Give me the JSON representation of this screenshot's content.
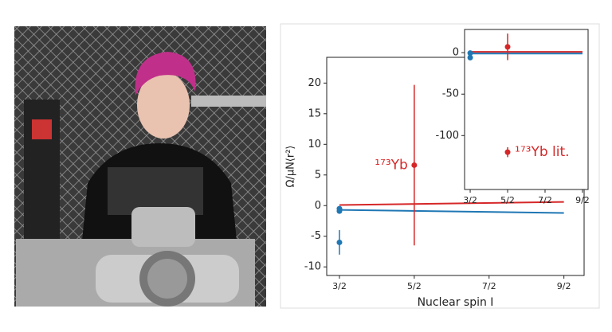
{
  "chart_data": [
    {
      "type": "line",
      "ylabel": "Ω/μN⟨r²⟩",
      "xlabel": "Nuclear spin I",
      "xlim": [
        1.33,
        4.77
      ],
      "ylim": [
        -11.4,
        24.2
      ],
      "xticks": [
        {
          "value": 1.5,
          "label": "3/2"
        },
        {
          "value": 2.5,
          "label": "5/2"
        },
        {
          "value": 3.5,
          "label": "7/2"
        },
        {
          "value": 4.5,
          "label": "9/2"
        }
      ],
      "yticks": [
        -10,
        -5,
        0,
        5,
        10,
        15,
        20
      ],
      "series": [
        {
          "color": "#d62728",
          "x": [
            1.5,
            4.5
          ],
          "values": [
            0.1,
            0.6
          ]
        },
        {
          "color": "#1f77b4",
          "x": [
            1.5,
            4.5
          ],
          "values": [
            -0.7,
            -1.2
          ]
        },
        {
          "color": "#1f77b4",
          "style": "points",
          "x": [
            1.5,
            1.5,
            1.5
          ],
          "values": [
            -0.5,
            -0.9,
            -6
          ],
          "errors": [
            0.3,
            0.3,
            2
          ]
        },
        {
          "color": "#d62728",
          "style": "points",
          "x": [
            2.5
          ],
          "values": [
            6.6
          ],
          "errors": [
            13.1
          ]
        }
      ],
      "annotations": [
        {
          "text": "¹⁷³Yb",
          "x": 2.5,
          "y": 6.6,
          "side": "left"
        }
      ]
    },
    {
      "type": "line",
      "xlim": [
        1.35,
        4.65
      ],
      "ylim": [
        -165,
        28
      ],
      "xticks": [
        {
          "value": 1.5,
          "label": "3/2"
        },
        {
          "value": 2.5,
          "label": "5/2"
        },
        {
          "value": 3.5,
          "label": "7/2"
        },
        {
          "value": 4.5,
          "label": "9/2"
        }
      ],
      "yticks": [
        -100,
        -50,
        0
      ],
      "series": [
        {
          "color": "#d62728",
          "x": [
            1.5,
            4.5
          ],
          "values": [
            1,
            1
          ]
        },
        {
          "color": "#1f77b4",
          "x": [
            1.5,
            4.5
          ],
          "values": [
            -1,
            -1
          ]
        },
        {
          "color": "#1f77b4",
          "style": "points",
          "x": [
            1.5,
            1.5
          ],
          "values": [
            -0.5,
            -6
          ],
          "errors": [
            1,
            1
          ]
        },
        {
          "color": "#d62728",
          "style": "points",
          "x": [
            2.5,
            2.5
          ],
          "values": [
            7,
            -120
          ],
          "errors": [
            16,
            6
          ]
        }
      ],
      "annotations": [
        {
          "text": "¹⁷³Yb lit.",
          "x": 2.5,
          "y": -120,
          "side": "right"
        }
      ]
    }
  ]
}
